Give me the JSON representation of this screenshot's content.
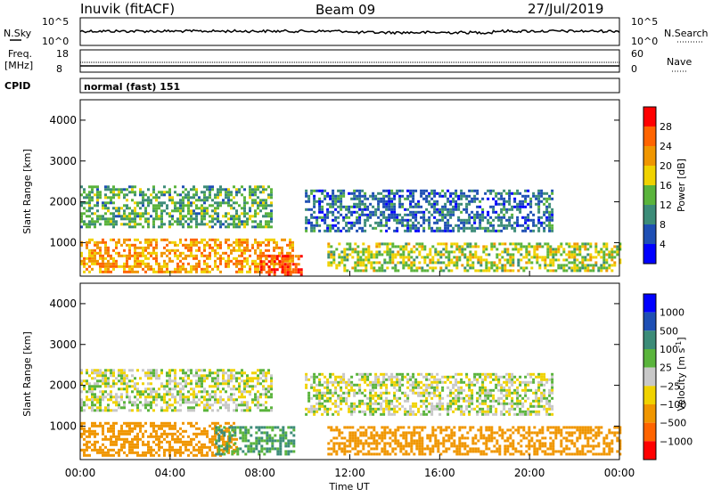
{
  "header": {
    "station": "Inuvik (fitACF)",
    "beam": "Beam 09",
    "date": "27/Jul/2019"
  },
  "strip_nsky": {
    "left_label": "N.Sky",
    "left_top": "10^5",
    "left_bottom": "10^0",
    "right_top": "10^5",
    "right_bottom": "10^0",
    "right_label": "N.Search"
  },
  "strip_freq": {
    "left_label_1": "Freq.",
    "left_label_2": "[MHz]",
    "left_top": "18",
    "left_bottom": "8",
    "right_top": "60",
    "right_bottom": "0",
    "right_label": "Nave"
  },
  "cpid": {
    "label": "CPID",
    "mode": "normal (fast) 151"
  },
  "xaxis": {
    "title": "Time UT",
    "ticks": [
      "00:00",
      "04:00",
      "08:00",
      "12:00",
      "16:00",
      "20:00",
      "00:00"
    ]
  },
  "power_panel": {
    "ylabel": "Slant Range [km]",
    "yticks": [
      "1000",
      "2000",
      "3000",
      "4000"
    ],
    "colorbar_title": "Power [dB]",
    "colorbar_labels": [
      "4",
      "8",
      "12",
      "16",
      "20",
      "24",
      "28"
    ],
    "colors": [
      "#0000ff",
      "#1e4fb4",
      "#3c8c78",
      "#5ab43c",
      "#f0d200",
      "#f09600",
      "#ff6400",
      "#ff0000"
    ]
  },
  "velocity_panel": {
    "ylabel": "Slant Range [km]",
    "yticks": [
      "1000",
      "2000",
      "3000",
      "4000"
    ],
    "colorbar_title": "Velocity [m s",
    "colorbar_sup": "-1",
    "colorbar_close": "]",
    "colorbar_labels": [
      "1000",
      "500",
      "100",
      "25",
      "−25",
      "−100",
      "−500",
      "−1000"
    ],
    "colors": [
      "#0000ff",
      "#1e4fb4",
      "#3c8c78",
      "#5ab43c",
      "#c8c8c8",
      "#f0d200",
      "#f09600",
      "#ff6400",
      "#ff0000"
    ]
  },
  "chart_data": {
    "type": "heatmap",
    "x_range_hours": [
      0,
      24
    ],
    "y_range_km": [
      180,
      4500
    ],
    "series": [
      {
        "panel": "power",
        "echo_regions": [
          {
            "start_h": 0.0,
            "end_h": 9.5,
            "min_km": 300,
            "max_km": 1100,
            "level_db": 22
          },
          {
            "start_h": 0.0,
            "end_h": 8.5,
            "min_km": 1400,
            "max_km": 2400,
            "level_db": 12
          },
          {
            "start_h": 8.0,
            "end_h": 9.8,
            "min_km": 220,
            "max_km": 700,
            "level_db": 28
          },
          {
            "start_h": 11.0,
            "end_h": 24.0,
            "min_km": 300,
            "max_km": 1000,
            "level_db": 16
          },
          {
            "start_h": 10.0,
            "end_h": 21.0,
            "min_km": 1300,
            "max_km": 2300,
            "level_db": 8
          }
        ]
      },
      {
        "panel": "velocity",
        "echo_regions": [
          {
            "start_h": 0.0,
            "end_h": 7.0,
            "min_km": 300,
            "max_km": 1100,
            "level_ms": -200
          },
          {
            "start_h": 6.0,
            "end_h": 9.5,
            "min_km": 300,
            "max_km": 1000,
            "level_ms": 100
          },
          {
            "start_h": 0.0,
            "end_h": 8.5,
            "min_km": 1400,
            "max_km": 2400,
            "level_ms": 0
          },
          {
            "start_h": 11.0,
            "end_h": 24.0,
            "min_km": 300,
            "max_km": 1000,
            "level_ms": -300
          },
          {
            "start_h": 10.0,
            "end_h": 21.0,
            "min_km": 1300,
            "max_km": 2300,
            "level_ms": 0
          }
        ]
      }
    ]
  }
}
